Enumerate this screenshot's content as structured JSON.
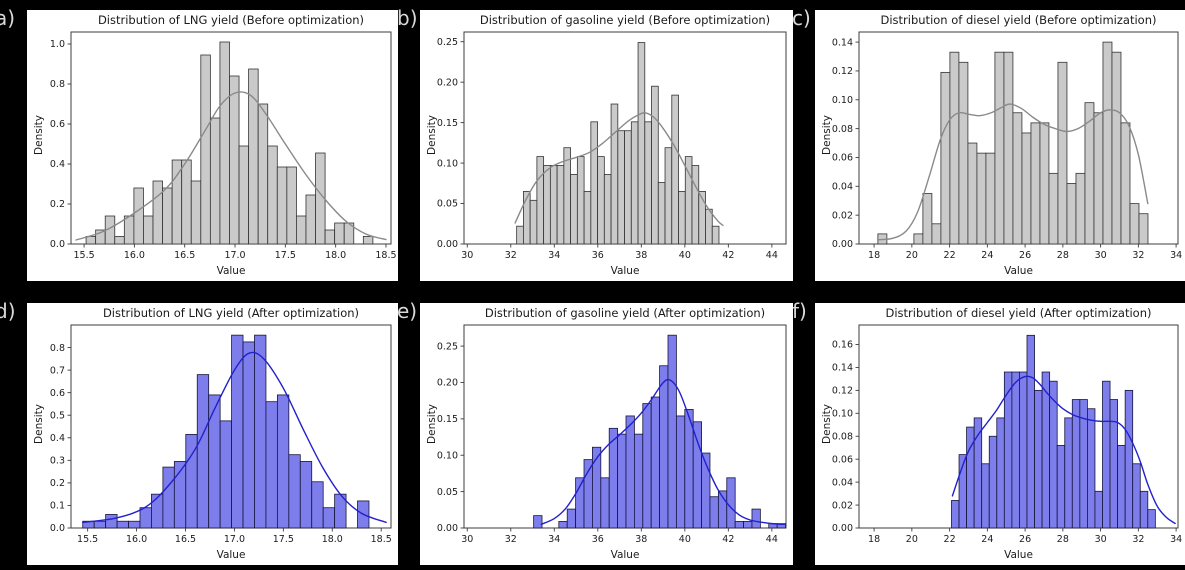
{
  "figure": {
    "background": "#000000",
    "panel_background": "#ffffff",
    "panel_label_color": "#d9d9d9",
    "axes_spine_color": "#3c3c3c"
  },
  "chart_data": [
    {
      "panel_label": "a)",
      "type": "histogram+kde",
      "title": "Distribution of LNG yield (Before optimization)",
      "xlabel": "Value",
      "ylabel": "Density",
      "legend": null,
      "grid": false,
      "xlim": [
        15.37,
        18.55
      ],
      "ylim": [
        0,
        1.06
      ],
      "xticks": [
        15.5,
        16.0,
        16.5,
        17.0,
        17.5,
        18.0,
        18.5
      ],
      "xtick_labels": [
        "15.5",
        "16.0",
        "16.5",
        "17.0",
        "17.5",
        "18.0",
        "18.5"
      ],
      "yticks": [
        0.0,
        0.2,
        0.4,
        0.6,
        0.8,
        1.0
      ],
      "ytick_labels": [
        "0.0",
        "0.2",
        "0.4",
        "0.6",
        "0.8",
        "1.0"
      ],
      "histogram": {
        "bin_start": 15.52,
        "bin_width": 0.095,
        "heights": [
          0.038,
          0.07,
          0.14,
          0.038,
          0.14,
          0.28,
          0.14,
          0.315,
          0.28,
          0.42,
          0.42,
          0.315,
          0.945,
          0.63,
          1.01,
          0.84,
          0.49,
          0.875,
          0.7,
          0.49,
          0.385,
          0.385,
          0.14,
          0.245,
          0.455,
          0.07,
          0.105,
          0.105,
          0,
          0.038
        ]
      },
      "kde": {
        "x": [
          15.42,
          15.7,
          16.0,
          16.3,
          16.5,
          16.7,
          16.85,
          17.0,
          17.15,
          17.3,
          17.5,
          17.7,
          17.9,
          18.1,
          18.3,
          18.5
        ],
        "y": [
          0.02,
          0.065,
          0.155,
          0.27,
          0.4,
          0.565,
          0.69,
          0.755,
          0.745,
          0.655,
          0.5,
          0.35,
          0.22,
          0.115,
          0.05,
          0.022
        ]
      },
      "colors": {
        "bar_fill": "#cacaca",
        "bar_edge": "#333333",
        "kde_line": "#8a8a8a"
      }
    },
    {
      "panel_label": "b)",
      "type": "histogram+kde",
      "title": "Distribution of gasoline yield (Before optimization)",
      "xlabel": "Value",
      "ylabel": "Density",
      "legend": null,
      "grid": false,
      "xlim": [
        29.85,
        44.65
      ],
      "ylim": [
        0,
        0.262
      ],
      "xticks": [
        30,
        32,
        34,
        36,
        38,
        40,
        42,
        44
      ],
      "xtick_labels": [
        "30",
        "32",
        "34",
        "36",
        "38",
        "40",
        "42",
        "44"
      ],
      "yticks": [
        0.0,
        0.05,
        0.1,
        0.15,
        0.2,
        0.25
      ],
      "ytick_labels": [
        "0.00",
        "0.05",
        "0.10",
        "0.15",
        "0.20",
        "0.25"
      ],
      "histogram": {
        "bin_start": 32.27,
        "bin_width": 0.31,
        "heights": [
          0.022,
          0.065,
          0.054,
          0.108,
          0.097,
          0.097,
          0.097,
          0.119,
          0.086,
          0.108,
          0.065,
          0.151,
          0.108,
          0.086,
          0.173,
          0.14,
          0.14,
          0.151,
          0.249,
          0.151,
          0.195,
          0.076,
          0.119,
          0.184,
          0.065,
          0.108,
          0.097,
          0.065,
          0.043,
          0.022
        ]
      },
      "kde": {
        "x": [
          32.2,
          32.7,
          33.2,
          33.8,
          34.4,
          35.0,
          35.6,
          36.2,
          36.8,
          37.4,
          37.9,
          38.2,
          38.6,
          39.0,
          39.5,
          40.0,
          40.5,
          41.0,
          41.5,
          41.75
        ],
        "y": [
          0.026,
          0.055,
          0.078,
          0.094,
          0.102,
          0.107,
          0.113,
          0.124,
          0.138,
          0.152,
          0.16,
          0.162,
          0.156,
          0.143,
          0.122,
          0.097,
          0.071,
          0.047,
          0.029,
          0.023
        ]
      },
      "colors": {
        "bar_fill": "#cacaca",
        "bar_edge": "#333333",
        "kde_line": "#8a8a8a"
      }
    },
    {
      "panel_label": "c)",
      "type": "histogram+kde",
      "title": "Distribution of diesel yield (Before optimization)",
      "xlabel": "Value",
      "ylabel": "Density",
      "legend": null,
      "grid": false,
      "xlim": [
        17.2,
        34.1
      ],
      "ylim": [
        0,
        0.147
      ],
      "xticks": [
        18,
        20,
        22,
        24,
        26,
        28,
        30,
        32,
        34
      ],
      "xtick_labels": [
        "18",
        "20",
        "22",
        "24",
        "26",
        "28",
        "30",
        "32",
        "34"
      ],
      "yticks": [
        0.0,
        0.02,
        0.04,
        0.06,
        0.08,
        0.1,
        0.12,
        0.14
      ],
      "ytick_labels": [
        "0.00",
        "0.02",
        "0.04",
        "0.06",
        "0.08",
        "0.10",
        "0.12",
        "0.14"
      ],
      "histogram": {
        "bin_start": 18.2,
        "bin_width": 0.477,
        "heights": [
          0.007,
          0,
          0,
          0,
          0.007,
          0.035,
          0.014,
          0.119,
          0.133,
          0.126,
          0.07,
          0.063,
          0.063,
          0.133,
          0.133,
          0.091,
          0.077,
          0.084,
          0.084,
          0.049,
          0.126,
          0.042,
          0.049,
          0.098,
          0.091,
          0.14,
          0.133,
          0.084,
          0.028,
          0.021
        ]
      },
      "kde": {
        "x": [
          18.25,
          19.0,
          19.7,
          20.3,
          20.9,
          21.5,
          22.0,
          22.5,
          23.0,
          23.6,
          24.2,
          24.8,
          25.2,
          25.8,
          26.4,
          27.0,
          27.6,
          28.2,
          28.8,
          29.4,
          30.0,
          30.5,
          31.0,
          31.5,
          32.0,
          32.5
        ],
        "y": [
          0.003,
          0.004,
          0.009,
          0.022,
          0.046,
          0.072,
          0.086,
          0.091,
          0.09,
          0.089,
          0.091,
          0.095,
          0.097,
          0.094,
          0.088,
          0.083,
          0.08,
          0.078,
          0.08,
          0.085,
          0.091,
          0.093,
          0.091,
          0.082,
          0.062,
          0.028
        ]
      },
      "colors": {
        "bar_fill": "#cacaca",
        "bar_edge": "#333333",
        "kde_line": "#8a8a8a"
      }
    },
    {
      "panel_label": "d)",
      "type": "histogram+kde",
      "title": "Distribution of LNG yield (After optimization)",
      "xlabel": "Value",
      "ylabel": "Density",
      "legend": null,
      "grid": false,
      "xlim": [
        15.33,
        18.6
      ],
      "ylim": [
        0,
        0.9
      ],
      "xticks": [
        15.5,
        16.0,
        16.5,
        17.0,
        17.5,
        18.0,
        18.5
      ],
      "xtick_labels": [
        "15.5",
        "16.0",
        "16.5",
        "17.0",
        "17.5",
        "18.0",
        "18.5"
      ],
      "yticks": [
        0.0,
        0.1,
        0.2,
        0.3,
        0.4,
        0.5,
        0.6,
        0.7,
        0.8
      ],
      "ytick_labels": [
        "0.0",
        "0.1",
        "0.2",
        "0.3",
        "0.4",
        "0.5",
        "0.6",
        "0.7",
        "0.8"
      ],
      "histogram": {
        "bin_start": 15.45,
        "bin_width": 0.117,
        "heights": [
          0.03,
          0.03,
          0.06,
          0.03,
          0.03,
          0.09,
          0.15,
          0.27,
          0.295,
          0.415,
          0.68,
          0.59,
          0.475,
          0.855,
          0.825,
          0.855,
          0.56,
          0.59,
          0.325,
          0.295,
          0.205,
          0.09,
          0.15,
          0,
          0.12
        ]
      },
      "kde": {
        "x": [
          15.45,
          15.8,
          16.1,
          16.35,
          16.6,
          16.8,
          17.0,
          17.15,
          17.3,
          17.5,
          17.7,
          17.9,
          18.1,
          18.3,
          18.55
        ],
        "y": [
          0.025,
          0.045,
          0.095,
          0.2,
          0.35,
          0.53,
          0.7,
          0.775,
          0.75,
          0.62,
          0.44,
          0.27,
          0.14,
          0.065,
          0.025
        ]
      },
      "colors": {
        "bar_fill": "#7d7deb",
        "bar_edge": "#16163e",
        "kde_line": "#2121cd"
      }
    },
    {
      "panel_label": "e)",
      "type": "histogram+kde",
      "title": "Distribution of gasoline yield (After optimization)",
      "xlabel": "Value",
      "ylabel": "Density",
      "legend": null,
      "grid": false,
      "xlim": [
        29.85,
        44.65
      ],
      "ylim": [
        0,
        0.279
      ],
      "xticks": [
        30,
        32,
        34,
        36,
        38,
        40,
        42,
        44
      ],
      "xtick_labels": [
        "30",
        "32",
        "34",
        "36",
        "38",
        "40",
        "42",
        "44"
      ],
      "yticks": [
        0.0,
        0.05,
        0.1,
        0.15,
        0.2,
        0.25
      ],
      "ytick_labels": [
        "0.00",
        "0.05",
        "0.10",
        "0.15",
        "0.20",
        "0.25"
      ],
      "histogram": {
        "bin_start": 33.05,
        "bin_width": 0.386,
        "heights": [
          0.017,
          0,
          0,
          0.009,
          0.026,
          0.069,
          0.094,
          0.111,
          0.069,
          0.137,
          0.129,
          0.154,
          0.129,
          0.171,
          0.18,
          0.223,
          0.265,
          0.154,
          0.163,
          0.146,
          0.103,
          0.043,
          0.051,
          0.069,
          0.009,
          0.009,
          0.026,
          0,
          0.006,
          0.006
        ]
      },
      "kde": {
        "x": [
          33.4,
          34.0,
          34.5,
          35.0,
          35.5,
          36.0,
          36.5,
          37.0,
          37.5,
          38.0,
          38.5,
          38.9,
          39.2,
          39.5,
          39.8,
          40.2,
          40.6,
          41.0,
          41.5,
          42.0,
          42.5,
          43.0,
          43.5,
          44.0,
          44.6
        ],
        "y": [
          0.005,
          0.013,
          0.026,
          0.048,
          0.075,
          0.098,
          0.115,
          0.128,
          0.142,
          0.158,
          0.178,
          0.196,
          0.204,
          0.199,
          0.184,
          0.152,
          0.117,
          0.086,
          0.054,
          0.032,
          0.018,
          0.011,
          0.008,
          0.006,
          0.005
        ]
      },
      "colors": {
        "bar_fill": "#7d7deb",
        "bar_edge": "#16163e",
        "kde_line": "#2121cd"
      }
    },
    {
      "panel_label": "f)",
      "type": "histogram+kde",
      "title": "Distribution of diesel yield (After optimization)",
      "xlabel": "Value",
      "ylabel": "Density",
      "legend": null,
      "grid": false,
      "xlim": [
        17.2,
        34.1
      ],
      "ylim": [
        0,
        0.177
      ],
      "xticks": [
        18,
        20,
        22,
        24,
        26,
        28,
        30,
        32,
        34
      ],
      "xtick_labels": [
        "18",
        "20",
        "22",
        "24",
        "26",
        "28",
        "30",
        "32",
        "34"
      ],
      "yticks": [
        0.0,
        0.02,
        0.04,
        0.06,
        0.08,
        0.1,
        0.12,
        0.14,
        0.16
      ],
      "ytick_labels": [
        "0.00",
        "0.02",
        "0.04",
        "0.06",
        "0.08",
        "0.10",
        "0.12",
        "0.14",
        "0.16"
      ],
      "histogram": {
        "bin_start": 22.1,
        "bin_width": 0.4,
        "heights": [
          0.024,
          0.064,
          0.088,
          0.096,
          0.056,
          0.08,
          0.096,
          0.136,
          0.136,
          0.136,
          0.168,
          0.12,
          0.136,
          0.128,
          0.072,
          0.096,
          0.112,
          0.112,
          0.104,
          0.032,
          0.128,
          0.112,
          0.072,
          0.12,
          0.056,
          0.032,
          0.016
        ]
      },
      "kde": {
        "x": [
          22.15,
          22.6,
          23.0,
          23.5,
          24.0,
          24.5,
          25.0,
          25.5,
          26.0,
          26.4,
          26.8,
          27.2,
          27.6,
          28.0,
          28.5,
          29.0,
          29.5,
          30.0,
          30.5,
          30.9,
          31.3,
          31.7,
          32.1,
          32.5,
          33.0,
          33.5,
          33.95
        ],
        "y": [
          0.028,
          0.05,
          0.067,
          0.081,
          0.092,
          0.103,
          0.116,
          0.127,
          0.132,
          0.131,
          0.125,
          0.117,
          0.11,
          0.104,
          0.099,
          0.096,
          0.094,
          0.093,
          0.093,
          0.092,
          0.086,
          0.074,
          0.058,
          0.038,
          0.019,
          0.009,
          0.004
        ]
      },
      "colors": {
        "bar_fill": "#7d7deb",
        "bar_edge": "#16163e",
        "kde_line": "#2121cd"
      }
    }
  ]
}
